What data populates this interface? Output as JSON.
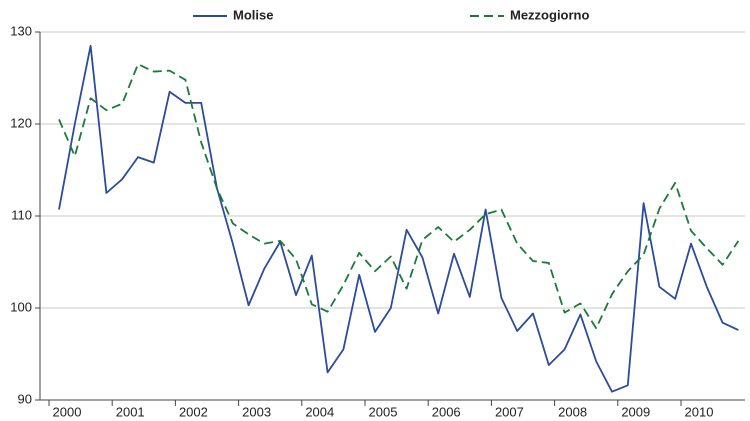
{
  "chart_data": {
    "type": "line",
    "categories": [
      "2000",
      null,
      null,
      null,
      "2001",
      null,
      null,
      null,
      "2002",
      null,
      null,
      null,
      "2003",
      null,
      null,
      null,
      "2004",
      null,
      null,
      null,
      "2005",
      null,
      null,
      null,
      "2006",
      null,
      null,
      null,
      "2007",
      null,
      null,
      null,
      "2008",
      null,
      null,
      null,
      "2009",
      null,
      null,
      null,
      "2010",
      null,
      null,
      null
    ],
    "series": [
      {
        "name": "Molise",
        "color": "#2b4b9b",
        "dash": false,
        "values": [
          110.7,
          120,
          128.5,
          112.5,
          114,
          116.4,
          115.8,
          123.5,
          122.3,
          122.3,
          113,
          107,
          100.3,
          104.3,
          107.2,
          101.4,
          105.7,
          93,
          95.5,
          103.6,
          97.4,
          100,
          108.5,
          105.5,
          99.4,
          105.9,
          101.2,
          110.7,
          101.1,
          97.5,
          99.4,
          93.8,
          95.5,
          99.3,
          94.2,
          90.9,
          91.6,
          111.4,
          102.3,
          101,
          107,
          102.3,
          98.4,
          97.6
        ]
      },
      {
        "name": "Mezzogiorno",
        "color": "#1a7a3a",
        "dash": true,
        "values": [
          120.5,
          116.5,
          122.8,
          121.5,
          122.2,
          126.5,
          125.7,
          125.8,
          124.8,
          118,
          113,
          109.2,
          108,
          107,
          107.3,
          105.3,
          100.4,
          99.6,
          102.5,
          106,
          104,
          105.6,
          102.1,
          107.4,
          108.8,
          107.2,
          108.5,
          110.2,
          110.7,
          107,
          105.1,
          104.9,
          99.5,
          100.5,
          97.8,
          101.5,
          104,
          105.8,
          110.8,
          113.6,
          108.4,
          106.5,
          104.7,
          107.3
        ]
      }
    ],
    "ylim": [
      90,
      130
    ],
    "yticks": [
      90,
      100,
      110,
      120,
      130
    ],
    "grid": true,
    "legend": "top"
  }
}
